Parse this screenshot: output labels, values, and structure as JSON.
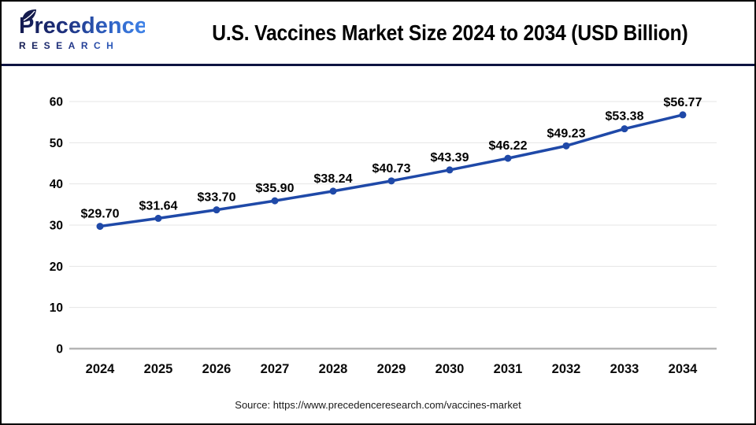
{
  "header": {
    "logo": {
      "line1": "Precedence",
      "line2": "RESEARCH"
    },
    "title": "U.S. Vaccines Market Size 2024 to 2034 (USD Billion)"
  },
  "chart_data": {
    "type": "line",
    "title": "U.S. Vaccines Market Size 2024 to 2034 (USD Billion)",
    "categories": [
      "2024",
      "2025",
      "2026",
      "2027",
      "2028",
      "2029",
      "2030",
      "2031",
      "2032",
      "2033",
      "2034"
    ],
    "values": [
      29.7,
      31.64,
      33.7,
      35.9,
      38.24,
      40.73,
      43.39,
      46.22,
      49.23,
      53.38,
      56.77
    ],
    "labels": [
      "$29.70",
      "$31.64",
      "$33.70",
      "$35.90",
      "$38.24",
      "$40.73",
      "$43.39",
      "$46.22",
      "$49.23",
      "$53.38",
      "$56.77"
    ],
    "xlabel": "",
    "ylabel": "",
    "ylim": [
      0,
      60
    ],
    "yticks": [
      0,
      10,
      20,
      30,
      40,
      50,
      60
    ],
    "grid": true,
    "legend": "none",
    "line_color": "#1f49a8",
    "grid_color": "#e4e4e4",
    "axis_color": "#b5b5b5",
    "label_color": "#000000"
  },
  "footer": {
    "source": "Source: https://www.precedenceresearch.com/vaccines-market"
  },
  "colors": {
    "divider": "#0e1441",
    "logo_dark": "#131a4e",
    "logo_light": "#3f83e8"
  }
}
